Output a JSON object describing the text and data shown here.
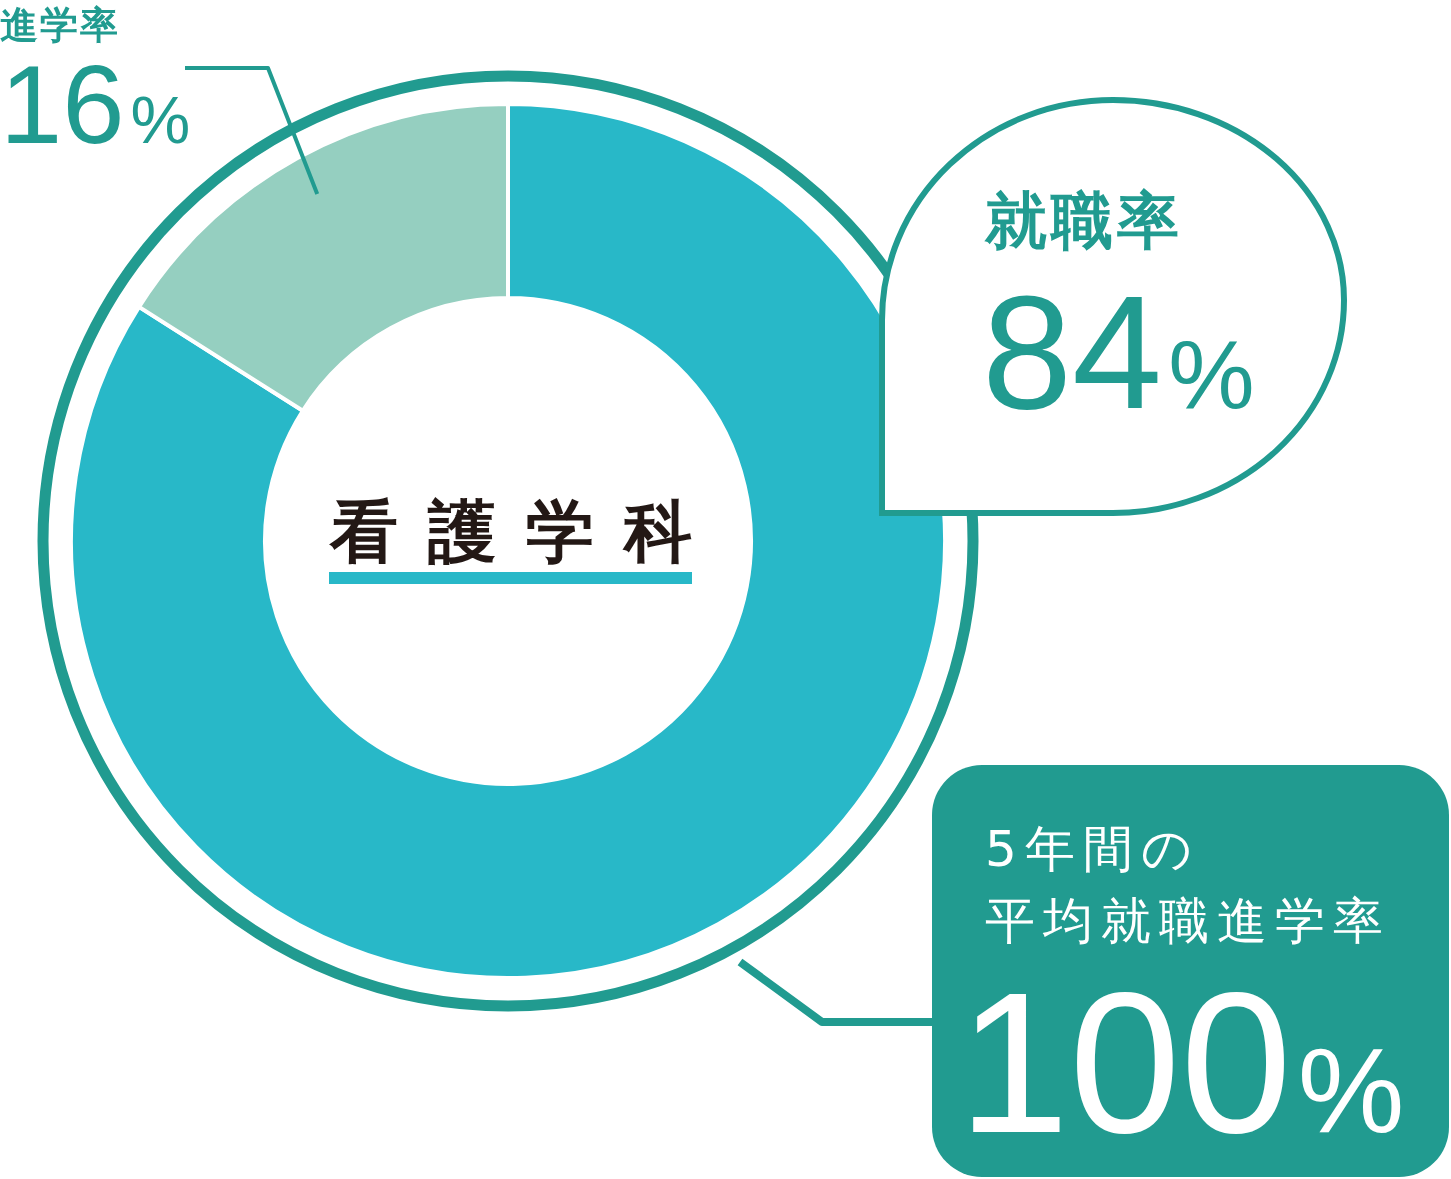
{
  "chart_data": {
    "type": "donut",
    "title": "看護学科",
    "categories": [
      "就職率",
      "進学率"
    ],
    "values": [
      84,
      16
    ],
    "colors": [
      "#28b8c8",
      "#95cfc0"
    ],
    "value_labels": [
      "84%",
      "16%"
    ],
    "annotations": [
      "5年間の",
      "平均就職進学率",
      "100%"
    ]
  }
}
